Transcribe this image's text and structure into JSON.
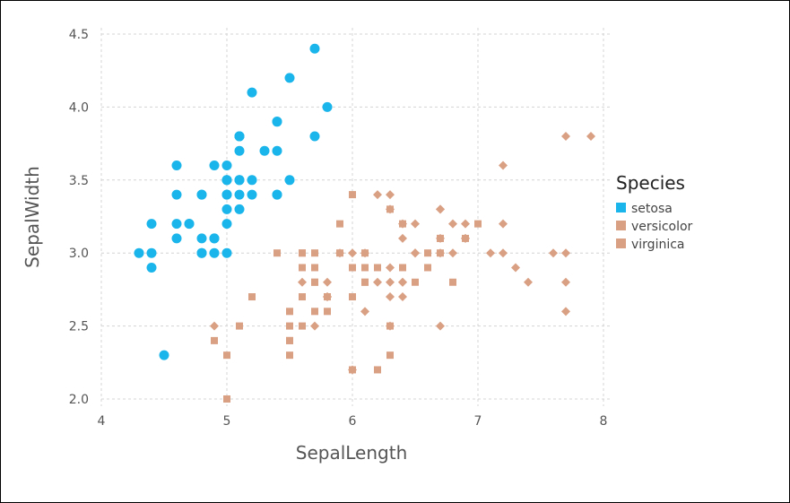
{
  "chart_data": {
    "type": "scatter",
    "xlabel": "SepalLength",
    "ylabel": "SepalWidth",
    "xlim": [
      4,
      8
    ],
    "ylim": [
      2.0,
      4.5
    ],
    "xticks": [
      "4",
      "5",
      "6",
      "7",
      "8"
    ],
    "xtick_values": [
      4,
      5,
      6,
      7,
      8
    ],
    "yticks": [
      "2.0",
      "2.5",
      "3.0",
      "3.5",
      "4.0",
      "4.5"
    ],
    "ytick_values": [
      2.0,
      2.5,
      3.0,
      3.5,
      4.0,
      4.5
    ],
    "grid": true,
    "legend_title": "Species",
    "legend_position": "right",
    "series": [
      {
        "name": "setosa",
        "color": "#1ab5ea",
        "marker": "circle",
        "points": [
          [
            5.1,
            3.5
          ],
          [
            4.9,
            3.0
          ],
          [
            4.7,
            3.2
          ],
          [
            4.6,
            3.1
          ],
          [
            5.0,
            3.6
          ],
          [
            5.4,
            3.9
          ],
          [
            4.6,
            3.4
          ],
          [
            5.0,
            3.4
          ],
          [
            4.4,
            2.9
          ],
          [
            4.9,
            3.1
          ],
          [
            5.4,
            3.7
          ],
          [
            4.8,
            3.4
          ],
          [
            4.8,
            3.0
          ],
          [
            4.3,
            3.0
          ],
          [
            5.8,
            4.0
          ],
          [
            5.7,
            4.4
          ],
          [
            5.4,
            3.9
          ],
          [
            5.1,
            3.5
          ],
          [
            5.7,
            3.8
          ],
          [
            5.1,
            3.8
          ],
          [
            5.4,
            3.4
          ],
          [
            5.1,
            3.7
          ],
          [
            4.6,
            3.6
          ],
          [
            5.1,
            3.3
          ],
          [
            4.8,
            3.4
          ],
          [
            5.0,
            3.0
          ],
          [
            5.0,
            3.4
          ],
          [
            5.2,
            3.5
          ],
          [
            5.2,
            3.4
          ],
          [
            4.7,
            3.2
          ],
          [
            4.8,
            3.1
          ],
          [
            5.4,
            3.4
          ],
          [
            5.2,
            4.1
          ],
          [
            5.5,
            4.2
          ],
          [
            4.9,
            3.1
          ],
          [
            5.0,
            3.2
          ],
          [
            5.5,
            3.5
          ],
          [
            4.9,
            3.6
          ],
          [
            4.4,
            3.0
          ],
          [
            5.1,
            3.4
          ],
          [
            5.0,
            3.5
          ],
          [
            4.5,
            2.3
          ],
          [
            4.4,
            3.2
          ],
          [
            5.0,
            3.5
          ],
          [
            5.1,
            3.8
          ],
          [
            4.8,
            3.0
          ],
          [
            5.1,
            3.8
          ],
          [
            4.6,
            3.2
          ],
          [
            5.3,
            3.7
          ],
          [
            5.0,
            3.3
          ]
        ]
      },
      {
        "name": "versicolor",
        "color": "#d9a084",
        "marker": "square",
        "points": [
          [
            7.0,
            3.2
          ],
          [
            6.4,
            3.2
          ],
          [
            6.9,
            3.1
          ],
          [
            5.5,
            2.3
          ],
          [
            6.5,
            2.8
          ],
          [
            5.7,
            2.8
          ],
          [
            6.3,
            3.3
          ],
          [
            4.9,
            2.4
          ],
          [
            6.6,
            2.9
          ],
          [
            5.2,
            2.7
          ],
          [
            5.0,
            2.0
          ],
          [
            5.9,
            3.0
          ],
          [
            6.0,
            2.2
          ],
          [
            6.1,
            2.9
          ],
          [
            5.6,
            2.9
          ],
          [
            6.7,
            3.1
          ],
          [
            5.6,
            3.0
          ],
          [
            5.8,
            2.7
          ],
          [
            6.2,
            2.2
          ],
          [
            5.6,
            2.5
          ],
          [
            5.9,
            3.2
          ],
          [
            6.1,
            2.8
          ],
          [
            6.3,
            2.5
          ],
          [
            6.1,
            2.8
          ],
          [
            6.4,
            2.9
          ],
          [
            6.6,
            3.0
          ],
          [
            6.8,
            2.8
          ],
          [
            6.7,
            3.0
          ],
          [
            6.0,
            2.9
          ],
          [
            5.7,
            2.6
          ],
          [
            5.5,
            2.4
          ],
          [
            5.5,
            2.4
          ],
          [
            5.8,
            2.7
          ],
          [
            6.0,
            2.7
          ],
          [
            5.4,
            3.0
          ],
          [
            6.0,
            3.4
          ],
          [
            6.7,
            3.1
          ],
          [
            6.3,
            2.3
          ],
          [
            5.6,
            3.0
          ],
          [
            5.5,
            2.5
          ],
          [
            5.5,
            2.6
          ],
          [
            6.1,
            3.0
          ],
          [
            5.8,
            2.6
          ],
          [
            5.0,
            2.3
          ],
          [
            5.6,
            2.7
          ],
          [
            5.7,
            3.0
          ],
          [
            5.7,
            2.9
          ],
          [
            6.2,
            2.9
          ],
          [
            5.1,
            2.5
          ],
          [
            5.7,
            2.8
          ]
        ]
      },
      {
        "name": "virginica",
        "color": "#d9a084",
        "marker": "diamond",
        "points": [
          [
            6.3,
            3.3
          ],
          [
            5.8,
            2.7
          ],
          [
            7.1,
            3.0
          ],
          [
            6.3,
            2.9
          ],
          [
            6.5,
            3.0
          ],
          [
            7.6,
            3.0
          ],
          [
            4.9,
            2.5
          ],
          [
            7.3,
            2.9
          ],
          [
            6.7,
            2.5
          ],
          [
            7.2,
            3.6
          ],
          [
            6.5,
            3.2
          ],
          [
            6.4,
            2.7
          ],
          [
            6.8,
            3.0
          ],
          [
            5.7,
            2.5
          ],
          [
            5.8,
            2.8
          ],
          [
            6.4,
            3.2
          ],
          [
            6.5,
            3.0
          ],
          [
            7.7,
            3.8
          ],
          [
            7.7,
            2.6
          ],
          [
            6.0,
            2.2
          ],
          [
            6.9,
            3.2
          ],
          [
            5.6,
            2.8
          ],
          [
            7.7,
            2.8
          ],
          [
            6.3,
            2.7
          ],
          [
            6.7,
            3.3
          ],
          [
            7.2,
            3.2
          ],
          [
            6.2,
            2.8
          ],
          [
            6.1,
            3.0
          ],
          [
            6.4,
            2.8
          ],
          [
            7.2,
            3.0
          ],
          [
            7.4,
            2.8
          ],
          [
            7.9,
            3.8
          ],
          [
            6.4,
            2.8
          ],
          [
            6.3,
            2.8
          ],
          [
            6.1,
            2.6
          ],
          [
            7.7,
            3.0
          ],
          [
            6.3,
            3.4
          ],
          [
            6.4,
            3.1
          ],
          [
            6.0,
            3.0
          ],
          [
            6.9,
            3.1
          ],
          [
            6.7,
            3.1
          ],
          [
            6.9,
            3.1
          ],
          [
            5.8,
            2.7
          ],
          [
            6.8,
            3.2
          ],
          [
            6.7,
            3.3
          ],
          [
            6.7,
            3.0
          ],
          [
            6.3,
            2.5
          ],
          [
            6.5,
            3.0
          ],
          [
            6.2,
            3.4
          ],
          [
            5.9,
            3.0
          ]
        ]
      }
    ]
  }
}
